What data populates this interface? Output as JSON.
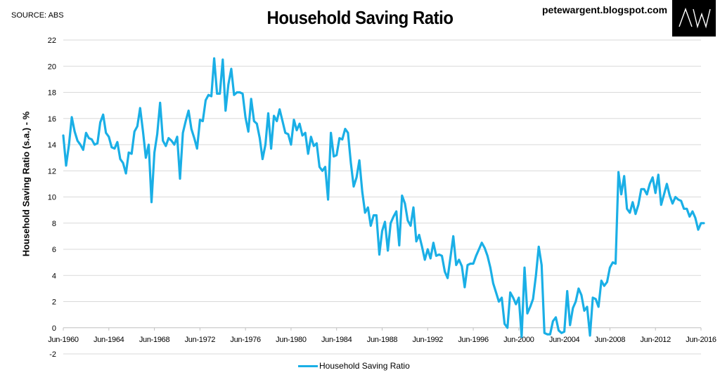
{
  "header": {
    "source": "SOURCE: ABS",
    "title": "Household Saving Ratio",
    "blog": "petewargent.blogspot.com",
    "logo_text": "AW"
  },
  "colors": {
    "series": "#1aafe6",
    "grid": "#d9d9d9",
    "logo_bg": "#000000"
  },
  "chart_data": {
    "type": "line",
    "title": "Household Saving Ratio",
    "xlabel": "",
    "ylabel": "Household Saving Ratio (s.a.) - %",
    "ylim": [
      -2,
      22
    ],
    "yticks": [
      -2,
      0,
      2,
      4,
      6,
      8,
      10,
      12,
      14,
      16,
      18,
      20,
      22
    ],
    "x_start": 1960.5,
    "x_end": 2016.5,
    "x_step": 0.25,
    "xtick_labels": [
      "Jun-1960",
      "Jun-1964",
      "Jun-1968",
      "Jun-1972",
      "Jun-1976",
      "Jun-1980",
      "Jun-1984",
      "Jun-1988",
      "Jun-1992",
      "Jun-1996",
      "Jun-2000",
      "Jun-2004",
      "Jun-2008",
      "Jun-2012",
      "Jun-2016"
    ],
    "grid": true,
    "legend_position": "bottom",
    "series": [
      {
        "name": "Household Saving Ratio",
        "values": [
          14.7,
          12.4,
          14.0,
          16.1,
          15.0,
          14.3,
          14.0,
          13.6,
          14.9,
          14.5,
          14.4,
          14.0,
          14.1,
          15.7,
          16.3,
          14.9,
          14.6,
          13.8,
          13.7,
          14.2,
          12.9,
          12.6,
          11.8,
          13.4,
          13.3,
          15.0,
          15.4,
          16.8,
          15.0,
          13.0,
          14.0,
          9.6,
          13.4,
          14.8,
          17.2,
          14.3,
          13.9,
          14.5,
          14.3,
          14.0,
          14.6,
          11.4,
          14.9,
          15.8,
          16.6,
          15.2,
          14.5,
          13.7,
          15.9,
          15.8,
          17.4,
          17.8,
          17.7,
          20.6,
          17.9,
          17.9,
          20.5,
          16.6,
          18.6,
          19.8,
          17.8,
          18.0,
          18.0,
          17.9,
          16.1,
          15.0,
          17.5,
          15.8,
          15.6,
          14.5,
          12.9,
          14.0,
          16.4,
          13.7,
          16.2,
          15.8,
          16.7,
          15.8,
          14.9,
          14.8,
          14.0,
          15.9,
          15.1,
          15.6,
          14.7,
          14.9,
          13.3,
          14.6,
          13.9,
          14.1,
          12.3,
          12.0,
          12.3,
          9.8,
          14.9,
          13.1,
          13.2,
          14.5,
          14.4,
          15.2,
          14.9,
          12.6,
          10.8,
          11.5,
          12.8,
          10.4,
          8.8,
          9.2,
          7.8,
          8.6,
          8.6,
          5.6,
          7.4,
          8.1,
          5.9,
          8.0,
          8.5,
          8.9,
          6.3,
          10.1,
          9.5,
          8.2,
          7.8,
          9.2,
          6.6,
          7.1,
          6.2,
          5.2,
          6.0,
          5.3,
          6.5,
          5.5,
          5.6,
          5.5,
          4.3,
          3.8,
          5.4,
          7.0,
          4.8,
          5.2,
          4.7,
          3.1,
          4.8,
          4.9,
          4.9,
          5.5,
          6.0,
          6.5,
          6.1,
          5.5,
          4.6,
          3.4,
          2.7,
          2.0,
          2.3,
          0.3,
          0.0,
          2.7,
          2.3,
          1.8,
          2.3,
          -0.7,
          4.6,
          1.1,
          1.6,
          2.2,
          4.0,
          6.2,
          4.8,
          -0.4,
          -0.5,
          -0.5,
          0.5,
          0.8,
          -0.2,
          -0.4,
          -0.3,
          2.8,
          0.2,
          1.5,
          2.0,
          3.0,
          2.5,
          1.3,
          1.6,
          -0.6,
          2.3,
          2.2,
          1.6,
          3.6,
          3.2,
          3.5,
          4.6,
          5.0,
          4.9,
          11.9,
          10.2,
          11.6,
          9.1,
          8.8,
          9.6,
          8.7,
          9.4,
          10.6,
          10.6,
          10.2,
          11.0,
          11.5,
          10.3,
          11.7,
          9.4,
          10.2,
          11.0,
          10.1,
          9.5,
          10.0,
          9.8,
          9.7,
          9.1,
          9.1,
          8.5,
          8.9,
          8.4,
          7.5,
          8.0,
          8.0
        ]
      }
    ]
  }
}
